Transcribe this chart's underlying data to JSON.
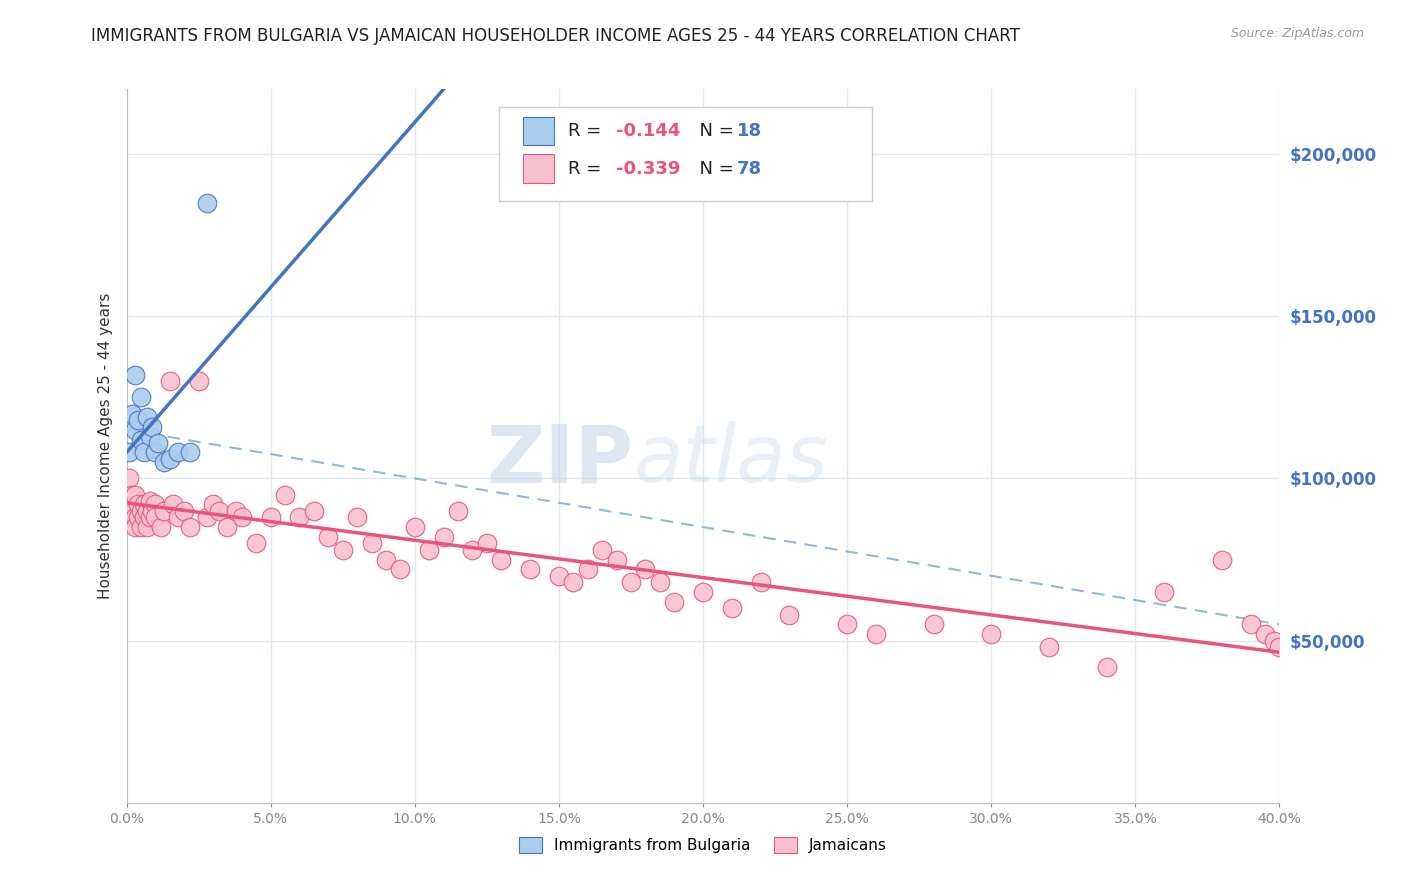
{
  "title": "IMMIGRANTS FROM BULGARIA VS JAMAICAN HOUSEHOLDER INCOME AGES 25 - 44 YEARS CORRELATION CHART",
  "source": "Source: ZipAtlas.com",
  "ylabel": "Householder Income Ages 25 - 44 years",
  "xlim": [
    0.0,
    0.4
  ],
  "ylim": [
    0,
    220000
  ],
  "xticks": [
    0.0,
    0.05,
    0.1,
    0.15,
    0.2,
    0.25,
    0.3,
    0.35,
    0.4
  ],
  "xtick_labels": [
    "0.0%",
    "5.0%",
    "10.0%",
    "15.0%",
    "20.0%",
    "25.0%",
    "30.0%",
    "35.0%",
    "40.0%"
  ],
  "yticks_right": [
    50000,
    100000,
    150000,
    200000
  ],
  "ytick_labels_right": [
    "$50,000",
    "$100,000",
    "$150,000",
    "$200,000"
  ],
  "bulgaria_R": -0.144,
  "bulgaria_N": 18,
  "jamaica_R": -0.339,
  "jamaica_N": 78,
  "bulgaria_color": "#aaccee",
  "jamaica_color": "#f9c0d0",
  "bulgaria_line_color": "#4472c4",
  "jamaica_line_color": "#e8547a",
  "dashed_line_color": "#90b8d8",
  "watermark_zip": "ZIP",
  "watermark_atlas": "atlas",
  "legend_label_bulgaria": "Immigrants from Bulgaria",
  "legend_label_jamaica": "Jamaicans",
  "background_color": "#ffffff",
  "grid_color": "#dde8f0",
  "title_color": "#222222",
  "right_tick_color": "#4472c4",
  "legend_R_color": "#e8547a",
  "legend_N_color": "#4472c4",
  "bulgaria_x": [
    0.001,
    0.002,
    0.003,
    0.003,
    0.004,
    0.005,
    0.005,
    0.006,
    0.007,
    0.008,
    0.009,
    0.01,
    0.011,
    0.013,
    0.015,
    0.018,
    0.022,
    0.028
  ],
  "bulgaria_y": [
    108000,
    120000,
    132000,
    115000,
    118000,
    112000,
    125000,
    108000,
    119000,
    113000,
    116000,
    108000,
    111000,
    105000,
    106000,
    108000,
    108000,
    185000
  ],
  "jamaica_x": [
    0.001,
    0.001,
    0.002,
    0.002,
    0.003,
    0.003,
    0.003,
    0.004,
    0.004,
    0.005,
    0.005,
    0.006,
    0.006,
    0.007,
    0.007,
    0.008,
    0.008,
    0.009,
    0.01,
    0.01,
    0.012,
    0.013,
    0.015,
    0.016,
    0.018,
    0.02,
    0.022,
    0.025,
    0.028,
    0.03,
    0.032,
    0.035,
    0.038,
    0.04,
    0.045,
    0.05,
    0.055,
    0.06,
    0.065,
    0.07,
    0.075,
    0.08,
    0.085,
    0.09,
    0.095,
    0.1,
    0.105,
    0.11,
    0.115,
    0.12,
    0.125,
    0.13,
    0.14,
    0.15,
    0.155,
    0.16,
    0.165,
    0.17,
    0.175,
    0.18,
    0.185,
    0.19,
    0.2,
    0.21,
    0.22,
    0.23,
    0.25,
    0.26,
    0.28,
    0.3,
    0.32,
    0.34,
    0.36,
    0.38,
    0.39,
    0.395,
    0.398,
    0.4
  ],
  "jamaica_y": [
    93000,
    100000,
    90000,
    95000,
    88000,
    95000,
    85000,
    92000,
    88000,
    90000,
    85000,
    92000,
    88000,
    90000,
    85000,
    93000,
    88000,
    90000,
    92000,
    88000,
    85000,
    90000,
    130000,
    92000,
    88000,
    90000,
    85000,
    130000,
    88000,
    92000,
    90000,
    85000,
    90000,
    88000,
    80000,
    88000,
    95000,
    88000,
    90000,
    82000,
    78000,
    88000,
    80000,
    75000,
    72000,
    85000,
    78000,
    82000,
    90000,
    78000,
    80000,
    75000,
    72000,
    70000,
    68000,
    72000,
    78000,
    75000,
    68000,
    72000,
    68000,
    62000,
    65000,
    60000,
    68000,
    58000,
    55000,
    52000,
    55000,
    52000,
    48000,
    42000,
    65000,
    75000,
    55000,
    52000,
    50000,
    48000
  ]
}
